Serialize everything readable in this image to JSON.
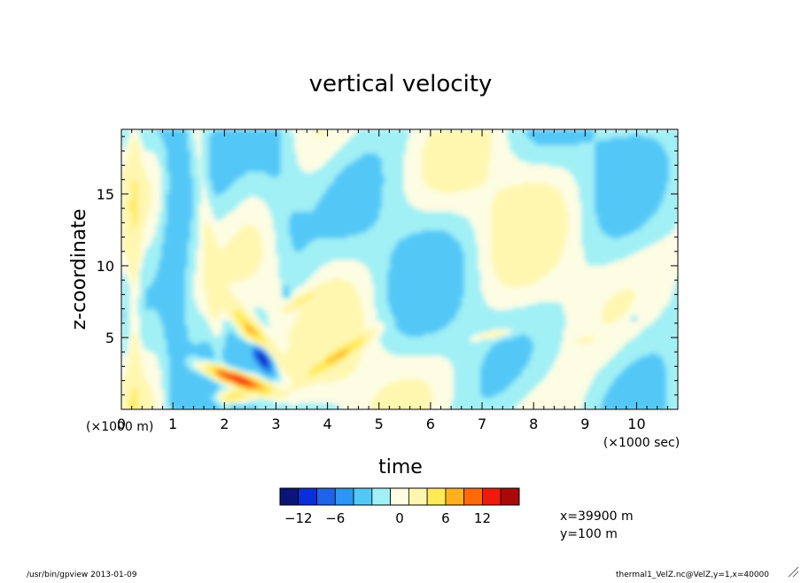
{
  "footer": {
    "left": "/usr/bin/gpview  2013-01-09",
    "right": "thermal1_VelZ.nc@VelZ,y=1,x=40000"
  },
  "info": {
    "x": "x=39900  m",
    "y": "y=100  m"
  },
  "chart_data": {
    "type": "heatmap",
    "title": "vertical velocity",
    "xlabel": "time",
    "ylabel": "z-coordinate",
    "x_unit": "(×1000 sec)",
    "y_unit": "(×1000 m)",
    "xlim": [
      0,
      10.8
    ],
    "ylim": [
      0,
      19.5
    ],
    "x_ticks": [
      "0",
      "1",
      "2",
      "3",
      "4",
      "5",
      "6",
      "7",
      "8",
      "9",
      "10"
    ],
    "y_ticks": [
      "5",
      "10",
      "15"
    ],
    "grid": false,
    "colorbar": {
      "levels": [
        -15,
        -12,
        -9,
        -6,
        -3,
        -1,
        0,
        1,
        3,
        6,
        9,
        12,
        15
      ],
      "tick_labels": [
        "−12",
        "−6",
        "0",
        "6",
        "12"
      ],
      "colors": [
        "#0a1578",
        "#0a2fd6",
        "#1f63e6",
        "#2c96f0",
        "#52c8f7",
        "#a0f0f5",
        "#fdfde3",
        "#fff7b0",
        "#ffeb5a",
        "#ffb020",
        "#ff6a0a",
        "#ee1a0a",
        "#a80a0a"
      ]
    },
    "features": [
      {
        "x": 2.3,
        "z": 2.3,
        "value": 14
      },
      {
        "x": 2.55,
        "z": 5.5,
        "value": 7
      },
      {
        "x": 2.75,
        "z": 3.8,
        "value": -11
      },
      {
        "x": 4.1,
        "z": 3.7,
        "value": 4
      },
      {
        "x": 3.3,
        "z": 8.0,
        "value": -2
      },
      {
        "x": 7.2,
        "z": 5.2,
        "value": 1.5
      },
      {
        "x": 1.5,
        "z": 12.0,
        "value": -1.5
      },
      {
        "x": 8.8,
        "z": 10.0,
        "value": 1.5
      }
    ]
  }
}
